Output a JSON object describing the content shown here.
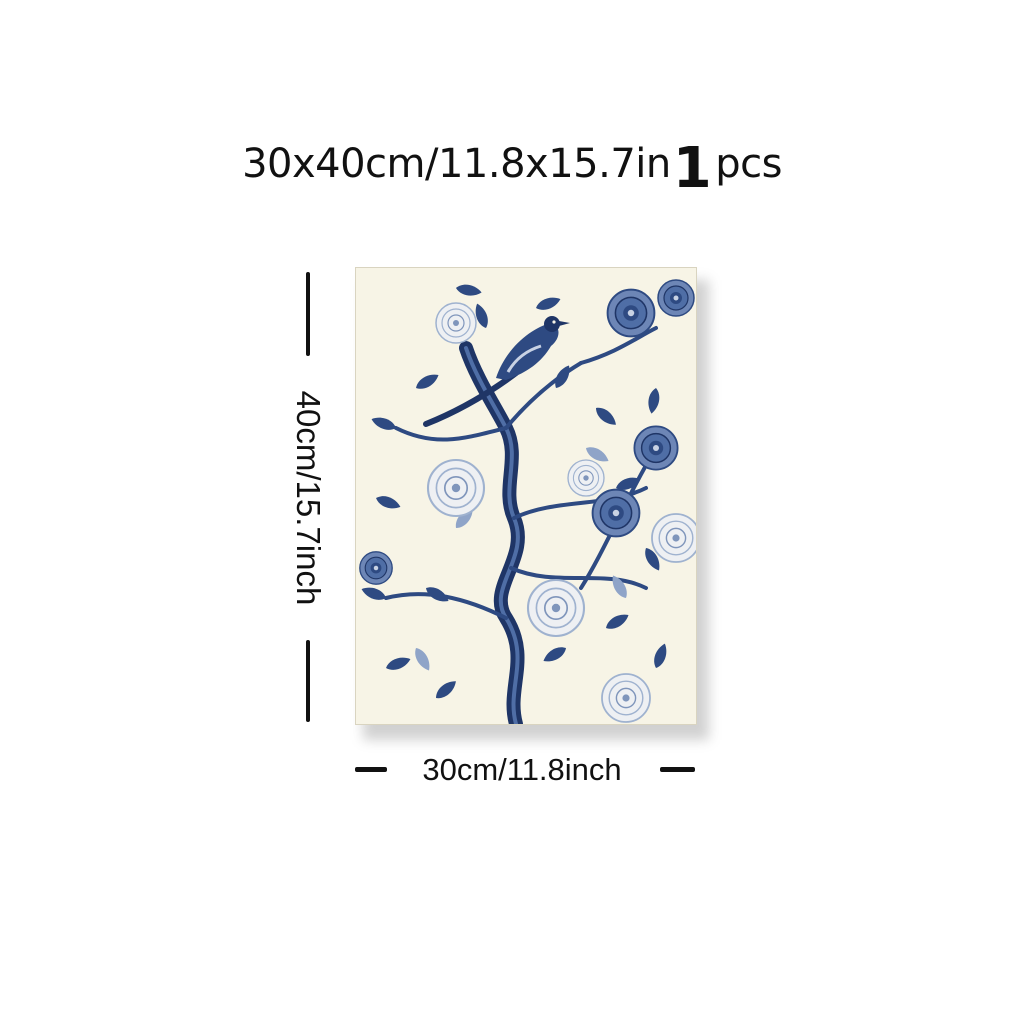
{
  "headline": {
    "size_text": "30x40cm/11.8x15.7in",
    "quantity_number": "1",
    "quantity_unit": "pcs"
  },
  "dimensions": {
    "height_label": "40cm/15.7inch",
    "width_label": "30cm/11.8inch"
  },
  "artwork": {
    "subject": "blue-and-white chinoiserie bird on flowering branch",
    "colors": {
      "background": "#f7f4e6",
      "ink_dark": "#1f3566",
      "ink_mid": "#3c5d94",
      "ink_light": "#9fb2cf",
      "bloom_white": "#eef0f3"
    }
  }
}
